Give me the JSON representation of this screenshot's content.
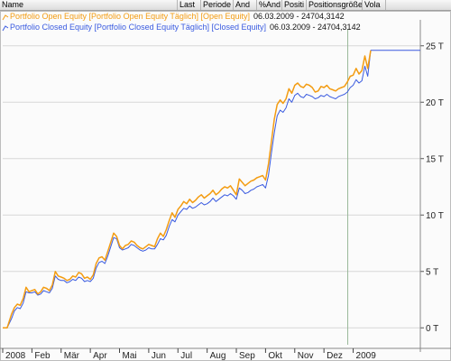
{
  "header": {
    "columns": [
      {
        "label": "Name"
      },
      {
        "label": "Last"
      },
      {
        "label": "Periode"
      },
      {
        "label": "And"
      },
      {
        "label": "%And"
      },
      {
        "label": "Positi"
      },
      {
        "label": "Positionsgröße"
      },
      {
        "label": "Vola"
      }
    ]
  },
  "colors": {
    "open": "#f39c12",
    "closed": "#3a5be0",
    "grid": "#d8d8d8",
    "marker_line": "#9ab89a"
  },
  "chart_data": {
    "type": "line",
    "ylim": [
      -1.5,
      26.5
    ],
    "y_ticks": [
      0,
      5,
      10,
      15,
      20,
      25
    ],
    "y_tick_labels": [
      "0 T",
      "5 T",
      "10 T",
      "15 T",
      "20 T",
      "25 T"
    ],
    "x_range": [
      0,
      14.3
    ],
    "x_tick_labels": [
      {
        "pos": 0,
        "label": "2008"
      },
      {
        "pos": 1,
        "label": "Feb"
      },
      {
        "pos": 2,
        "label": "Mär"
      },
      {
        "pos": 3,
        "label": "Apr"
      },
      {
        "pos": 4,
        "label": "Mai"
      },
      {
        "pos": 5,
        "label": "Jun"
      },
      {
        "pos": 6,
        "label": "Jul"
      },
      {
        "pos": 7,
        "label": "Aug"
      },
      {
        "pos": 8,
        "label": "Sep"
      },
      {
        "pos": 9,
        "label": "Okt"
      },
      {
        "pos": 10,
        "label": "Nov"
      },
      {
        "pos": 11,
        "label": "Dez"
      },
      {
        "pos": 12,
        "label": "2009"
      }
    ],
    "grid": true,
    "legend": [
      {
        "text": "Portfolio Open Equity [Portfolio Open Equity  Täglich] [Open Equity]",
        "value": "06.03.2009 - 24704,3142"
      },
      {
        "text": "Portfolio Closed Equity [Portfolio Closed Equity  Täglich] [Closed Equity]",
        "value": "06.03.2009 - 24704,3142"
      }
    ],
    "series": [
      {
        "name": "Portfolio Open Equity",
        "x": [
          0,
          0.15,
          0.3,
          0.4,
          0.5,
          0.6,
          0.7,
          0.8,
          0.9,
          1.0,
          1.1,
          1.2,
          1.3,
          1.4,
          1.5,
          1.6,
          1.7,
          1.8,
          1.9,
          2.0,
          2.1,
          2.2,
          2.3,
          2.4,
          2.5,
          2.6,
          2.7,
          2.8,
          2.9,
          3.0,
          3.1,
          3.2,
          3.3,
          3.4,
          3.5,
          3.6,
          3.7,
          3.8,
          3.9,
          4.0,
          4.1,
          4.2,
          4.3,
          4.4,
          4.5,
          4.6,
          4.7,
          4.8,
          4.9,
          5.0,
          5.1,
          5.2,
          5.3,
          5.4,
          5.5,
          5.6,
          5.7,
          5.8,
          5.9,
          6.0,
          6.1,
          6.2,
          6.3,
          6.4,
          6.5,
          6.6,
          6.7,
          6.8,
          6.9,
          7.0,
          7.1,
          7.2,
          7.3,
          7.4,
          7.5,
          7.6,
          7.7,
          7.8,
          7.9,
          8.0,
          8.1,
          8.2,
          8.3,
          8.4,
          8.5,
          8.6,
          8.7,
          8.8,
          8.9,
          9.0,
          9.1,
          9.2,
          9.3,
          9.4,
          9.5,
          9.6,
          9.7,
          9.8,
          9.9,
          10.0,
          10.1,
          10.2,
          10.3,
          10.4,
          10.5,
          10.6,
          10.7,
          10.8,
          10.9,
          11.0,
          11.1,
          11.2,
          11.3,
          11.4,
          11.5,
          11.6,
          11.7,
          11.8,
          11.9,
          12.0,
          12.1,
          12.2,
          12.3,
          12.4,
          12.5,
          12.6
        ],
        "values": [
          0,
          0,
          1.2,
          1.8,
          2.1,
          2.0,
          2.6,
          3.6,
          3.2,
          3.3,
          3.4,
          3.0,
          3.2,
          3.6,
          3.5,
          3.3,
          3.8,
          5.0,
          4.6,
          4.5,
          4.4,
          4.2,
          4.3,
          4.6,
          4.5,
          4.9,
          4.8,
          4.4,
          4.5,
          4.3,
          4.7,
          5.7,
          6.2,
          6.3,
          6.0,
          6.8,
          7.6,
          8.4,
          8.1,
          7.3,
          7.0,
          7.3,
          7.4,
          7.7,
          7.6,
          7.3,
          7.1,
          7.0,
          7.2,
          7.4,
          7.3,
          7.2,
          7.9,
          8.4,
          8.1,
          8.7,
          9.5,
          10.2,
          9.8,
          10.5,
          10.8,
          11.2,
          11.0,
          11.4,
          11.1,
          11.3,
          11.6,
          11.8,
          11.5,
          11.7,
          11.9,
          12.2,
          11.8,
          12.0,
          12.3,
          12.5,
          12.4,
          12.6,
          12.2,
          11.8,
          13.2,
          12.9,
          12.6,
          12.8,
          13.0,
          13.1,
          13.3,
          13.4,
          13.5,
          13.1,
          14.5,
          16.5,
          18.5,
          19.8,
          20.2,
          19.9,
          20.3,
          21.2,
          20.8,
          21.5,
          21.7,
          21.4,
          21.3,
          21.6,
          21.5,
          21.3,
          20.9,
          21.0,
          21.4,
          21.3,
          21.5,
          21.2,
          21.1,
          21.0,
          21.2,
          21.3,
          21.4,
          21.8,
          22.3,
          22.4,
          23.0,
          22.5,
          22.8,
          24.1,
          23.0,
          24.6
        ]
      },
      {
        "name": "Portfolio Closed Equity",
        "x": [
          0,
          0.15,
          0.3,
          0.4,
          0.5,
          0.6,
          0.7,
          0.8,
          0.9,
          1.0,
          1.1,
          1.2,
          1.3,
          1.4,
          1.5,
          1.6,
          1.7,
          1.8,
          1.9,
          2.0,
          2.1,
          2.2,
          2.3,
          2.4,
          2.5,
          2.6,
          2.7,
          2.8,
          2.9,
          3.0,
          3.1,
          3.2,
          3.3,
          3.4,
          3.5,
          3.6,
          3.7,
          3.8,
          3.9,
          4.0,
          4.1,
          4.2,
          4.3,
          4.4,
          4.5,
          4.6,
          4.7,
          4.8,
          4.9,
          5.0,
          5.1,
          5.2,
          5.3,
          5.4,
          5.5,
          5.6,
          5.7,
          5.8,
          5.9,
          6.0,
          6.1,
          6.2,
          6.3,
          6.4,
          6.5,
          6.6,
          6.7,
          6.8,
          6.9,
          7.0,
          7.1,
          7.2,
          7.3,
          7.4,
          7.5,
          7.6,
          7.7,
          7.8,
          7.9,
          8.0,
          8.1,
          8.2,
          8.3,
          8.4,
          8.5,
          8.6,
          8.7,
          8.8,
          8.9,
          9.0,
          9.1,
          9.2,
          9.3,
          9.4,
          9.5,
          9.6,
          9.7,
          9.8,
          9.9,
          10.0,
          10.1,
          10.2,
          10.3,
          10.4,
          10.5,
          10.6,
          10.7,
          10.8,
          10.9,
          11.0,
          11.1,
          11.2,
          11.3,
          11.4,
          11.5,
          11.6,
          11.7,
          11.8,
          11.9,
          12.0,
          12.1,
          12.2,
          12.3,
          12.4,
          12.5,
          12.6
        ],
        "values": [
          0,
          0,
          0.8,
          1.5,
          1.8,
          1.7,
          2.2,
          3.2,
          3.1,
          3.1,
          3.2,
          2.9,
          3.0,
          3.3,
          3.2,
          3.1,
          3.5,
          4.6,
          4.3,
          4.2,
          4.2,
          4.0,
          4.1,
          4.3,
          4.2,
          4.5,
          4.4,
          4.1,
          4.2,
          4.1,
          4.4,
          5.3,
          5.8,
          5.9,
          5.7,
          6.4,
          7.2,
          8.0,
          7.9,
          7.1,
          6.9,
          7.0,
          7.1,
          7.4,
          7.3,
          7.1,
          6.9,
          6.8,
          6.9,
          7.1,
          7.0,
          7.0,
          7.4,
          7.9,
          7.8,
          8.2,
          9.0,
          9.6,
          9.4,
          10.0,
          10.3,
          10.6,
          10.5,
          10.8,
          10.6,
          10.7,
          10.9,
          11.1,
          10.9,
          11.0,
          11.2,
          11.5,
          11.2,
          11.4,
          11.6,
          11.8,
          11.7,
          11.9,
          11.7,
          11.4,
          12.4,
          12.2,
          11.9,
          12.0,
          12.2,
          12.3,
          12.5,
          12.6,
          12.7,
          12.4,
          13.5,
          15.5,
          17.3,
          18.8,
          19.3,
          19.1,
          19.5,
          20.3,
          20.0,
          20.6,
          20.8,
          20.5,
          20.4,
          20.7,
          20.6,
          20.5,
          20.3,
          20.4,
          20.6,
          20.5,
          20.7,
          20.5,
          20.4,
          20.3,
          20.5,
          20.6,
          20.7,
          20.9,
          21.3,
          21.5,
          22.0,
          21.7,
          21.9,
          23.2,
          22.3,
          24.6
        ]
      }
    ]
  }
}
